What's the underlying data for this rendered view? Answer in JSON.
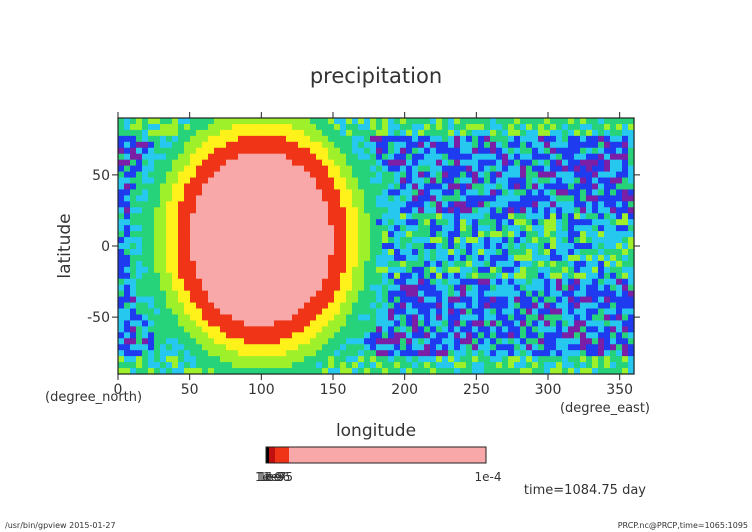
{
  "chart_data": {
    "type": "heatmap",
    "title": "precipitation",
    "xlabel": "longitude",
    "ylabel": "latitude",
    "x_unit": "(degree_east)",
    "y_unit": "(degree_north)",
    "xlim": [
      0,
      360
    ],
    "ylim": [
      -90,
      90
    ],
    "x_ticks": [
      0,
      50,
      100,
      150,
      200,
      250,
      300,
      350
    ],
    "y_ticks": [
      -50,
      0,
      50
    ],
    "field": {
      "blob_center_lon": 100,
      "blob_center_lat": 5,
      "blob_radius_lon": 75,
      "blob_radius_lat": 92
    },
    "levels": [
      {
        "color": "#7a1fa6"
      },
      {
        "color": "#1f3bf0"
      },
      {
        "color": "#27c8f0"
      },
      {
        "color": "#26d37a"
      },
      {
        "color": "#9ef02a"
      },
      {
        "color": "#fff21a"
      },
      {
        "color": "#f03418"
      },
      {
        "color": "#f8a8a8"
      }
    ],
    "colorbar": {
      "left_label": "1e-8",
      "overlap_labels": [
        "1e-9",
        "1e-7",
        "1e-6",
        "1e-5"
      ],
      "right_label": "1e-4"
    },
    "annotation": "time=1084.75 day"
  },
  "footer": {
    "left": "/usr/bin/gpview  2015-01-27",
    "right": "PRCP.nc@PRCP,time=1065:1095"
  }
}
